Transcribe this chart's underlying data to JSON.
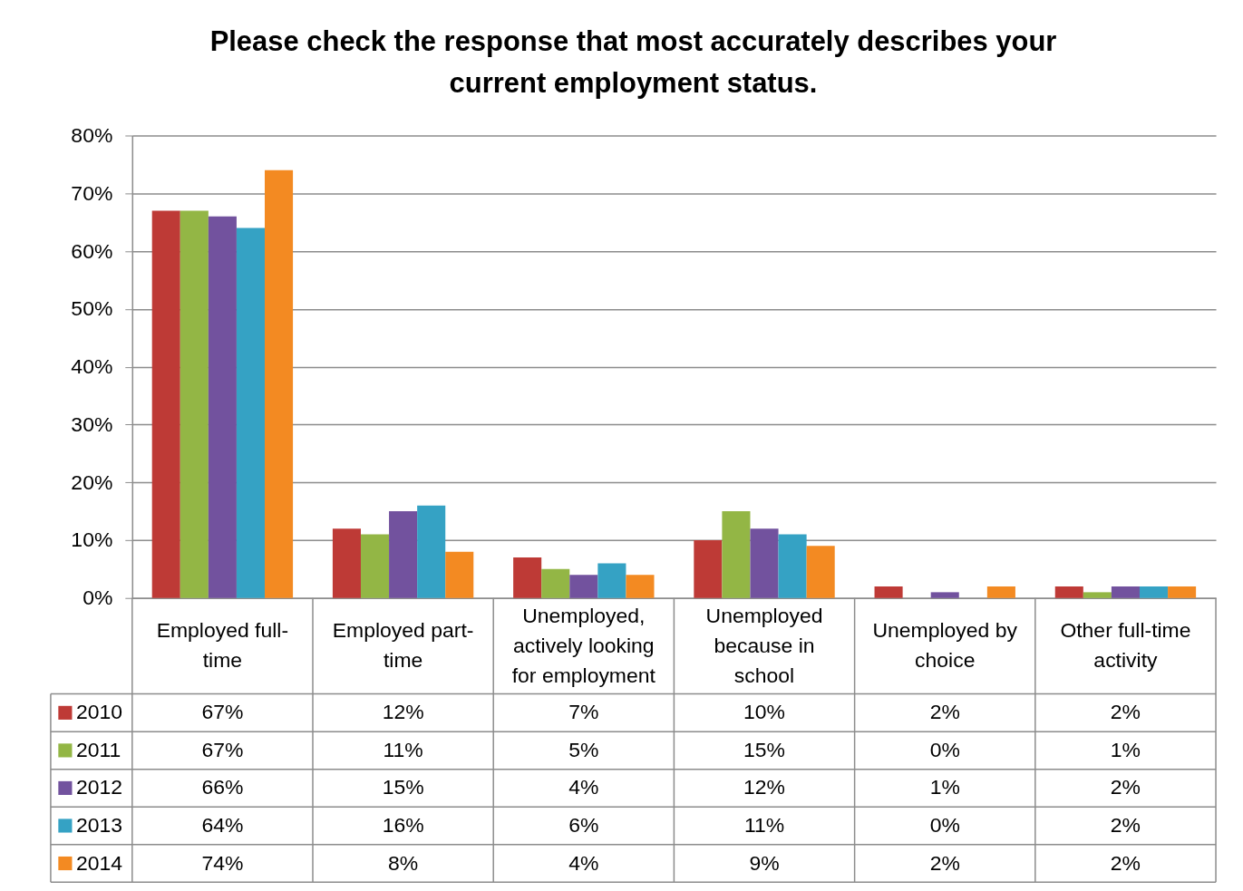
{
  "chart_data": {
    "type": "bar",
    "title": "Please check the response that most accurately describes your current employment status.",
    "categories": [
      "Employed full-time",
      "Employed part-time",
      "Unemployed, actively looking for employment",
      "Unemployed because in school",
      "Unemployed by choice",
      "Other full-time activity"
    ],
    "series": [
      {
        "name": "2010",
        "color": "#be3a36",
        "values": [
          67,
          12,
          7,
          10,
          2,
          2
        ],
        "value_labels": [
          "67%",
          "12%",
          "7%",
          "10%",
          "2%",
          "2%"
        ]
      },
      {
        "name": "2011",
        "color": "#93b645",
        "values": [
          67,
          11,
          5,
          15,
          0,
          1
        ],
        "value_labels": [
          "67%",
          "11%",
          "5%",
          "15%",
          "0%",
          "1%"
        ]
      },
      {
        "name": "2012",
        "color": "#72529e",
        "values": [
          66,
          15,
          4,
          12,
          1,
          2
        ],
        "value_labels": [
          "66%",
          "15%",
          "4%",
          "12%",
          "1%",
          "2%"
        ]
      },
      {
        "name": "2013",
        "color": "#35a2c4",
        "values": [
          64,
          16,
          6,
          11,
          0,
          2
        ],
        "value_labels": [
          "64%",
          "16%",
          "6%",
          "11%",
          "0%",
          "2%"
        ]
      },
      {
        "name": "2014",
        "color": "#f38a22",
        "values": [
          74,
          8,
          4,
          9,
          2,
          2
        ],
        "value_labels": [
          "74%",
          "8%",
          "4%",
          "9%",
          "2%",
          "2%"
        ]
      }
    ],
    "ylim": [
      0,
      80
    ],
    "yticks": [
      {
        "value": 0,
        "label": "0%"
      },
      {
        "value": 10,
        "label": "10%"
      },
      {
        "value": 20,
        "label": "20%"
      },
      {
        "value": 30,
        "label": "30%"
      },
      {
        "value": 40,
        "label": "40%"
      },
      {
        "value": 50,
        "label": "50%"
      },
      {
        "value": 60,
        "label": "60%"
      },
      {
        "value": 70,
        "label": "70%"
      },
      {
        "value": 80,
        "label": "80%"
      }
    ],
    "grid": "y",
    "legend": "bottom"
  }
}
